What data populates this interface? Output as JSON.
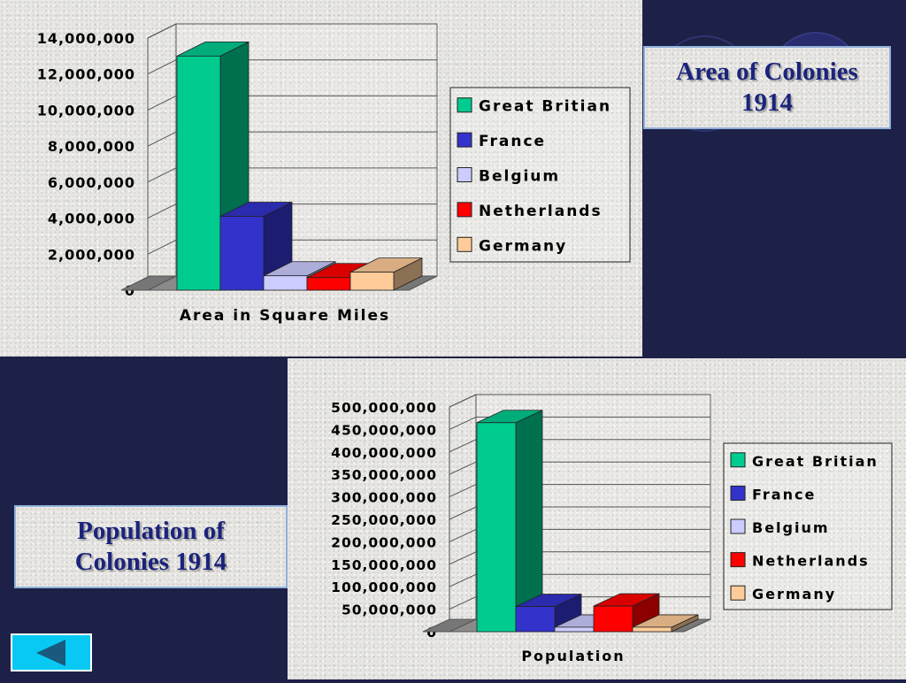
{
  "titles": {
    "area": [
      "Area of Colonies",
      "1914"
    ],
    "population": [
      "Population of",
      "Colonies 1914"
    ]
  },
  "colors": {
    "Great Britian": "#00cc8f",
    "France": "#3333cc",
    "Belgium": "#ccccff",
    "Netherlands": "#ff0000",
    "Germany": "#ffcc99"
  },
  "icons": {
    "nav": "back-triangle-icon"
  },
  "chart_data": [
    {
      "type": "bar",
      "title": "",
      "xlabel": "Area in Square Miles",
      "ylabel": "",
      "ylim": [
        0,
        14000000
      ],
      "yticks": [
        "0",
        "2,000,000",
        "4,000,000",
        "6,000,000",
        "8,000,000",
        "10,000,000",
        "12,000,000",
        "14,000,000"
      ],
      "categories": [
        "Area in Square Miles"
      ],
      "series": [
        {
          "name": "Great Britian",
          "values": [
            13000000
          ]
        },
        {
          "name": "France",
          "values": [
            4100000
          ]
        },
        {
          "name": "Belgium",
          "values": [
            800000
          ]
        },
        {
          "name": "Netherlands",
          "values": [
            700000
          ]
        },
        {
          "name": "Germany",
          "values": [
            1000000
          ]
        }
      ],
      "legend": "right",
      "grid": true
    },
    {
      "type": "bar",
      "title": "",
      "xlabel": "Population",
      "ylabel": "",
      "ylim": [
        0,
        500000000
      ],
      "yticks": [
        "0",
        "50,000,000",
        "100,000,000",
        "150,000,000",
        "200,000,000",
        "250,000,000",
        "300,000,000",
        "350,000,000",
        "400,000,000",
        "450,000,000",
        "500,000,000"
      ],
      "categories": [
        "Population"
      ],
      "series": [
        {
          "name": "Great Britian",
          "values": [
            465000000
          ]
        },
        {
          "name": "France",
          "values": [
            56000000
          ]
        },
        {
          "name": "Belgium",
          "values": [
            10000000
          ]
        },
        {
          "name": "Netherlands",
          "values": [
            57000000
          ]
        },
        {
          "name": "Germany",
          "values": [
            10000000
          ]
        }
      ],
      "legend": "right",
      "grid": true
    }
  ]
}
